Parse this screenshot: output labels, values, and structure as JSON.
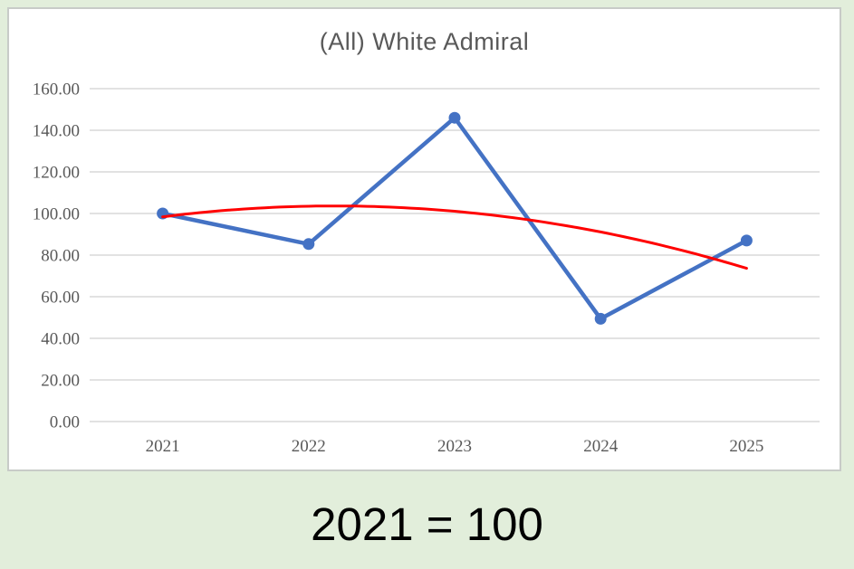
{
  "window": {
    "background_color": "#e2eedb",
    "panel_background_color": "#ffffff",
    "panel_border_color": "#c8cbc8"
  },
  "chart_data": {
    "type": "line",
    "title": "(All) White Admiral",
    "title_color": "#595959",
    "categories": [
      "2021",
      "2022",
      "2023",
      "2024",
      "2025"
    ],
    "series": [
      {
        "name": "(All) White Admiral",
        "values": [
          100.0,
          85.3,
          146.0,
          49.4,
          87.0
        ],
        "color": "#4472C4",
        "marker": "circle"
      }
    ],
    "trendline": {
      "type": "polynomial",
      "order": 2,
      "color": "#FF0000",
      "applies_to": "(All) White Admiral"
    },
    "xlabel": "",
    "ylabel": "",
    "ylim": [
      0,
      160
    ],
    "ytick_step": 20,
    "ytick_labels": [
      "0.00",
      "20.00",
      "40.00",
      "60.00",
      "80.00",
      "100.00",
      "120.00",
      "140.00",
      "160.00"
    ],
    "legend": "none",
    "gridlines": "horizontal",
    "gridline_color": "#D9D9D9",
    "axis_label_color": "#595959"
  },
  "caption": {
    "text": "2021 = 100",
    "color": "#000000"
  }
}
